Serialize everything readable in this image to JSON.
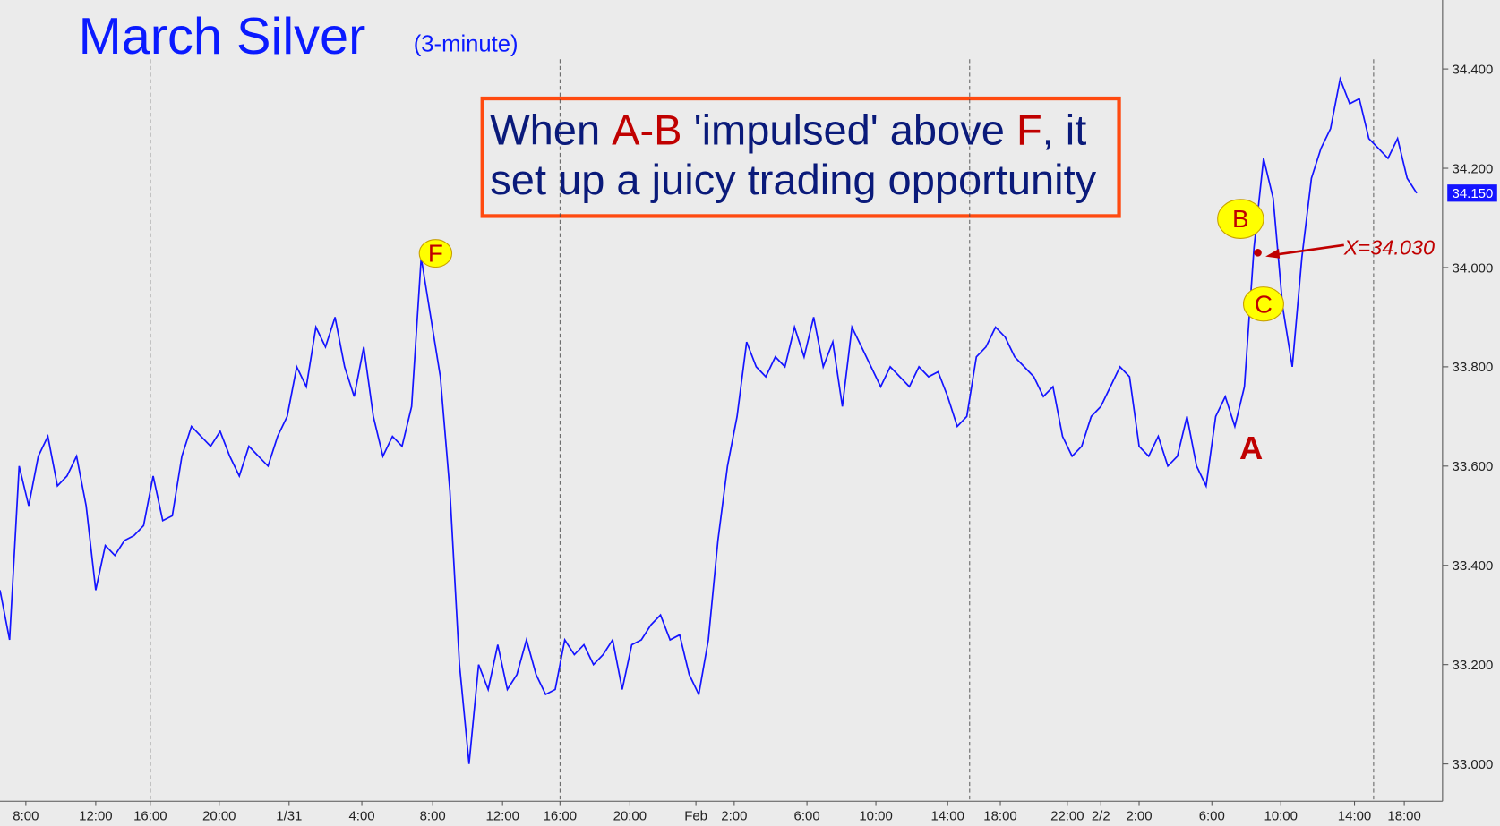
{
  "chart_data": {
    "type": "line",
    "title": "March Silver",
    "subtitle": "(3-minute)",
    "color": "#1414ff",
    "values": [
      33.35,
      33.25,
      33.6,
      33.52,
      33.62,
      33.66,
      33.56,
      33.58,
      33.62,
      33.52,
      33.35,
      33.44,
      33.42,
      33.45,
      33.46,
      33.48,
      33.58,
      33.49,
      33.5,
      33.62,
      33.68,
      33.66,
      33.64,
      33.67,
      33.62,
      33.58,
      33.64,
      33.62,
      33.6,
      33.66,
      33.7,
      33.8,
      33.76,
      33.88,
      33.84,
      33.9,
      33.8,
      33.74,
      33.84,
      33.7,
      33.62,
      33.66,
      33.64,
      33.72,
      34.02,
      33.9,
      33.78,
      33.55,
      33.2,
      33.0,
      33.2,
      33.15,
      33.24,
      33.15,
      33.18,
      33.25,
      33.18,
      33.14,
      33.15,
      33.25,
      33.22,
      33.24,
      33.2,
      33.22,
      33.25,
      33.15,
      33.24,
      33.25,
      33.28,
      33.3,
      33.25,
      33.26,
      33.18,
      33.14,
      33.25,
      33.45,
      33.6,
      33.7,
      33.85,
      33.8,
      33.78,
      33.82,
      33.8,
      33.88,
      33.82,
      33.9,
      33.8,
      33.85,
      33.72,
      33.88,
      33.84,
      33.8,
      33.76,
      33.8,
      33.78,
      33.76,
      33.8,
      33.78,
      33.79,
      33.74,
      33.68,
      33.7,
      33.82,
      33.84,
      33.88,
      33.86,
      33.82,
      33.8,
      33.78,
      33.74,
      33.76,
      33.66,
      33.62,
      33.64,
      33.7,
      33.72,
      33.76,
      33.8,
      33.78,
      33.64,
      33.62,
      33.66,
      33.6,
      33.62,
      33.7,
      33.6,
      33.56,
      33.7,
      33.74,
      33.68,
      33.76,
      34.04,
      34.22,
      34.14,
      33.92,
      33.8,
      34.02,
      34.18,
      34.24,
      34.28,
      34.38,
      34.33,
      34.34,
      34.26,
      34.24,
      34.22,
      34.26,
      34.18,
      34.15
    ],
    "xlim": [
      0,
      150.7
    ],
    "ylim": [
      32.925,
      34.539
    ],
    "xticks": [
      {
        "value": 2.7,
        "label": "8:00"
      },
      {
        "value": 10.0,
        "label": "12:00"
      },
      {
        "value": 15.7,
        "label": "16:00"
      },
      {
        "value": 22.9,
        "label": "20:00"
      },
      {
        "value": 30.2,
        "label": "1/31"
      },
      {
        "value": 37.8,
        "label": "4:00"
      },
      {
        "value": 45.2,
        "label": "8:00"
      },
      {
        "value": 52.5,
        "label": "12:00"
      },
      {
        "value": 58.5,
        "label": "16:00"
      },
      {
        "value": 65.8,
        "label": "20:00"
      },
      {
        "value": 72.7,
        "label": "Feb"
      },
      {
        "value": 76.7,
        "label": "2:00"
      },
      {
        "value": 84.3,
        "label": "6:00"
      },
      {
        "value": 91.5,
        "label": "10:00"
      },
      {
        "value": 99.0,
        "label": "14:00"
      },
      {
        "value": 104.5,
        "label": "18:00"
      },
      {
        "value": 111.5,
        "label": "22:00"
      },
      {
        "value": 115.0,
        "label": "2/2"
      },
      {
        "value": 119.0,
        "label": "2:00"
      },
      {
        "value": 126.6,
        "label": "6:00"
      },
      {
        "value": 133.8,
        "label": "10:00"
      },
      {
        "value": 141.5,
        "label": "14:00"
      },
      {
        "value": 146.7,
        "label": "18:00"
      }
    ],
    "session_lines": [
      15.7,
      58.5,
      101.3,
      143.5
    ],
    "yticks": [
      {
        "value": 33.0,
        "label": "33.000"
      },
      {
        "value": 33.2,
        "label": "33.200"
      },
      {
        "value": 33.4,
        "label": "33.400"
      },
      {
        "value": 33.6,
        "label": "33.600"
      },
      {
        "value": 33.8,
        "label": "33.800"
      },
      {
        "value": 34.0,
        "label": "34.000"
      },
      {
        "value": 34.2,
        "label": "34.200"
      },
      {
        "value": 34.4,
        "label": "34.400"
      }
    ],
    "last_price": {
      "value": 34.15,
      "label": "34.150"
    },
    "x_level": {
      "value": 34.03,
      "label": "X=34.030"
    },
    "wave_labels": [
      "F",
      "B",
      "C",
      "A"
    ],
    "annotation": {
      "lines": [
        [
          {
            "text": "When ",
            "color": "#0a1a7a"
          },
          {
            "text": "A-B",
            "color": "#c00000"
          },
          {
            "text": " 'impulsed' above ",
            "color": "#0a1a7a"
          },
          {
            "text": "F",
            "color": "#c00000"
          },
          {
            "text": ", it",
            "color": "#0a1a7a"
          }
        ],
        [
          {
            "text": "set up a juicy trading opportunity",
            "color": "#0a1a7a"
          }
        ]
      ]
    }
  }
}
